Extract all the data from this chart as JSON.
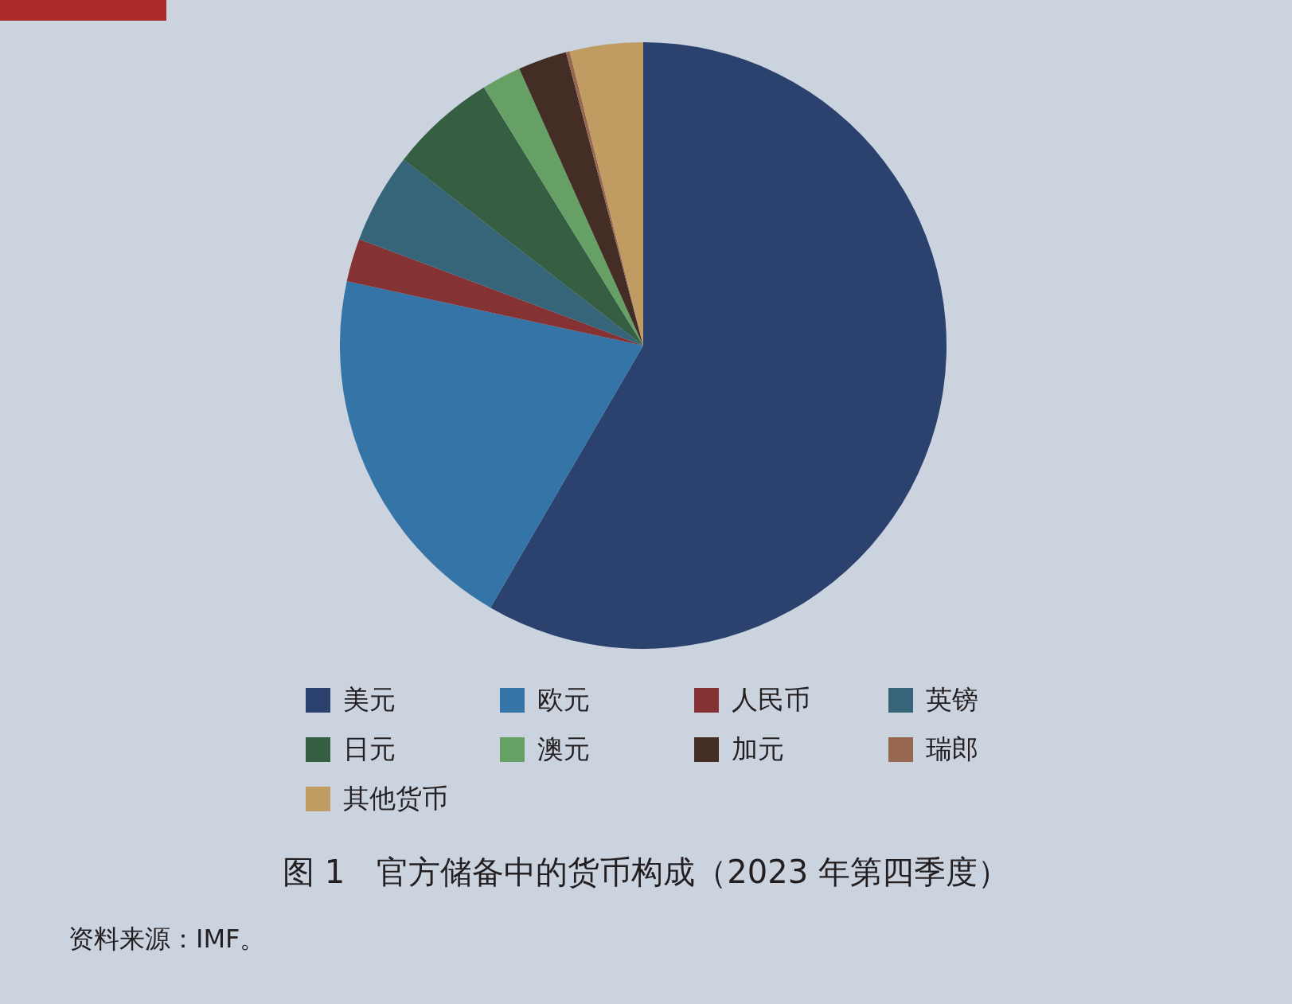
{
  "chart_data": {
    "type": "pie",
    "title": "图 1　官方储备中的货币构成（2023 年第四季度）",
    "categories": [
      "美元",
      "欧元",
      "人民币",
      "英镑",
      "日元",
      "澳元",
      "加元",
      "瑞郎",
      "其他货币"
    ],
    "values": [
      58.4,
      20.0,
      2.3,
      4.8,
      5.7,
      2.1,
      2.6,
      0.2,
      3.9
    ],
    "colors": [
      "#2b416e",
      "#3574a6",
      "#853234",
      "#366478",
      "#365e43",
      "#66a064",
      "#432d25",
      "#98674f",
      "#c09c63"
    ],
    "legend": "bottom",
    "annotations": [
      "资料来源：IMF。"
    ]
  }
}
